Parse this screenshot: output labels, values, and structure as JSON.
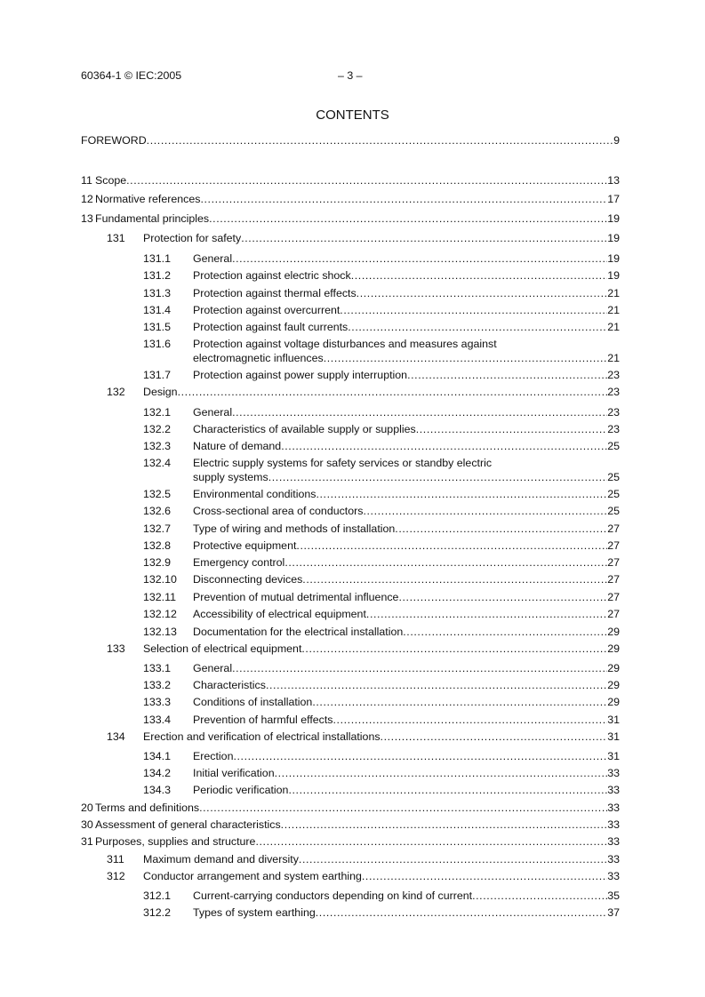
{
  "header": {
    "left": "60364-1 © IEC:2005",
    "center": "– 3 –"
  },
  "title": "CONTENTS",
  "entries": [
    {
      "level": 0,
      "num": "",
      "text": "FOREWORD",
      "page": "9"
    },
    {
      "level": 0,
      "num": "11",
      "text": "Scope",
      "page": "13"
    },
    {
      "level": 0,
      "num": "12",
      "text": "Normative references",
      "page": "17"
    },
    {
      "level": 0,
      "num": "13",
      "text": "Fundamental principles",
      "page": "19"
    },
    {
      "level": 1,
      "num": "131",
      "text": "Protection for safety",
      "page": "19"
    },
    {
      "level": 2,
      "num": "131.1",
      "text": "General",
      "page": "19"
    },
    {
      "level": 2,
      "num": "131.2",
      "text": "Protection against electric shock",
      "page": "19"
    },
    {
      "level": 2,
      "num": "131.3",
      "text": "Protection against thermal effects",
      "page": "21"
    },
    {
      "level": 2,
      "num": "131.4",
      "text": "Protection against overcurrent",
      "page": "21"
    },
    {
      "level": 2,
      "num": "131.5",
      "text": "Protection against fault currents",
      "page": "21"
    },
    {
      "level": 2,
      "num": "131.6",
      "text": "Protection against voltage disturbances and measures against",
      "text2": "electromagnetic influences",
      "page": "21"
    },
    {
      "level": 2,
      "num": "131.7",
      "text": "Protection against power supply interruption",
      "page": "23"
    },
    {
      "level": 1,
      "num": "132",
      "text": "Design",
      "page": "23"
    },
    {
      "level": 2,
      "num": "132.1",
      "text": "General",
      "page": "23"
    },
    {
      "level": 2,
      "num": "132.2",
      "text": "Characteristics of available supply or supplies",
      "page": "23"
    },
    {
      "level": 2,
      "num": "132.3",
      "text": "Nature of demand",
      "page": "25"
    },
    {
      "level": 2,
      "num": "132.4",
      "text": "Electric supply systems for safety services or standby electric",
      "text2": "supply  systems",
      "page": "25"
    },
    {
      "level": 2,
      "num": "132.5",
      "text": "Environmental conditions",
      "page": "25"
    },
    {
      "level": 2,
      "num": "132.6",
      "text": "Cross-sectional area of conductors",
      "page": "25"
    },
    {
      "level": 2,
      "num": "132.7",
      "text": "Type of wiring and methods of installation",
      "page": "27"
    },
    {
      "level": 2,
      "num": "132.8",
      "text": "Protective equipment",
      "page": "27"
    },
    {
      "level": 2,
      "num": "132.9",
      "text": "Emergency control",
      "page": "27"
    },
    {
      "level": 2,
      "num": "132.10",
      "text": "Disconnecting devices",
      "page": "27"
    },
    {
      "level": 2,
      "num": "132.11",
      "text": "Prevention of mutual detrimental influence",
      "page": "27"
    },
    {
      "level": 2,
      "num": "132.12",
      "text": "Accessibility of electrical equipment",
      "page": "27"
    },
    {
      "level": 2,
      "num": "132.13",
      "text": "Documentation for the electrical installation",
      "page": "29"
    },
    {
      "level": 1,
      "num": "133",
      "text": "Selection of electrical equipment",
      "page": "29"
    },
    {
      "level": 2,
      "num": "133.1",
      "text": "General",
      "page": "29"
    },
    {
      "level": 2,
      "num": "133.2",
      "text": "Characteristics",
      "page": "29"
    },
    {
      "level": 2,
      "num": "133.3",
      "text": "Conditions of installation",
      "page": "29"
    },
    {
      "level": 2,
      "num": "133.4",
      "text": "Prevention of harmful effects",
      "page": "31"
    },
    {
      "level": 1,
      "num": "134",
      "text": "Erection and verification of electrical installations",
      "page": "31"
    },
    {
      "level": 2,
      "num": "134.1",
      "text": "Erection",
      "page": "31"
    },
    {
      "level": 2,
      "num": "134.2",
      "text": "Initial verification",
      "page": "33"
    },
    {
      "level": 2,
      "num": "134.3",
      "text": "Periodic verification",
      "page": "33"
    },
    {
      "level": 0,
      "num": "20",
      "text": "Terms and definitions",
      "page": "33"
    },
    {
      "level": 0,
      "num": "30",
      "text": "Assessment of general characteristics",
      "page": "33"
    },
    {
      "level": 0,
      "num": "31",
      "text": "Purposes, supplies and structure",
      "page": "33"
    },
    {
      "level": 1,
      "num": "311",
      "text": "Maximum demand and diversity",
      "page": "33"
    },
    {
      "level": 1,
      "num": "312",
      "text": "Conductor arrangement and system earthing",
      "page": "33"
    },
    {
      "level": 2,
      "num": "312.1",
      "text": "Current-carrying conductors depending on kind of current",
      "page": "35"
    },
    {
      "level": 2,
      "num": "312.2",
      "text": "Types of system earthing",
      "page": "37"
    }
  ]
}
